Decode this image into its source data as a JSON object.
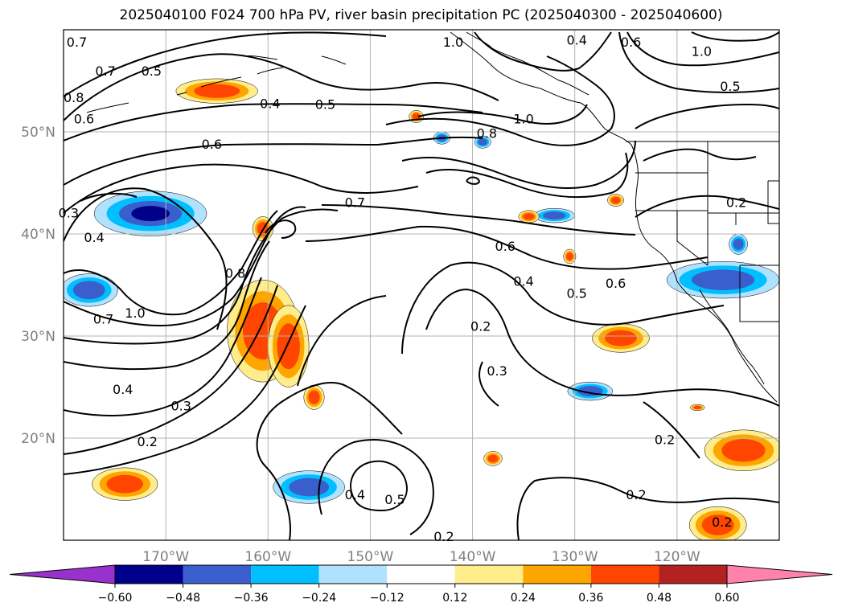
{
  "title": "2025040100 F024 700 hPa PV, river basin precipitation PC (2025040300 - 2025040600)",
  "map": {
    "lon_range": [
      -180,
      -110
    ],
    "lat_range": [
      10,
      60
    ],
    "lat_labels": [
      "50°N",
      "40°N",
      "30°N",
      "20°N"
    ],
    "lat_values": [
      50,
      40,
      30,
      20
    ],
    "lon_labels": [
      "170°W",
      "160°W",
      "150°W",
      "140°W",
      "130°W",
      "120°W"
    ],
    "lon_values": [
      -170,
      -160,
      -150,
      -140,
      -130,
      -120
    ],
    "contour_labels": [
      {
        "text": "0.7",
        "lon": -178.7,
        "lat": 58.8
      },
      {
        "text": "0.7",
        "lon": -175.9,
        "lat": 56.0
      },
      {
        "text": "0.5",
        "lon": -171.4,
        "lat": 56.0
      },
      {
        "text": "0.8",
        "lon": -179.0,
        "lat": 53.4
      },
      {
        "text": "0.6",
        "lon": -178.0,
        "lat": 51.3
      },
      {
        "text": "0.4",
        "lon": -159.8,
        "lat": 52.8
      },
      {
        "text": "0.5",
        "lon": -154.4,
        "lat": 52.7
      },
      {
        "text": "0.6",
        "lon": -165.5,
        "lat": 48.8
      },
      {
        "text": "1.0",
        "lon": -141.9,
        "lat": 58.8
      },
      {
        "text": "0.4",
        "lon": -129.8,
        "lat": 59.0
      },
      {
        "text": "0.6",
        "lon": -124.5,
        "lat": 58.8
      },
      {
        "text": "1.0",
        "lon": -117.6,
        "lat": 57.9
      },
      {
        "text": "0.5",
        "lon": -114.8,
        "lat": 54.5
      },
      {
        "text": "0.8",
        "lon": -138.6,
        "lat": 49.9
      },
      {
        "text": "1.0",
        "lon": -135.0,
        "lat": 51.3
      },
      {
        "text": "0.7",
        "lon": -151.5,
        "lat": 43.1
      },
      {
        "text": "0.3",
        "lon": -179.5,
        "lat": 42.1
      },
      {
        "text": "0.2",
        "lon": -114.2,
        "lat": 43.1
      },
      {
        "text": "0.4",
        "lon": -177.0,
        "lat": 39.7
      },
      {
        "text": "0.6",
        "lon": -136.8,
        "lat": 38.8
      },
      {
        "text": "0.8",
        "lon": -163.2,
        "lat": 36.2
      },
      {
        "text": "0.4",
        "lon": -135.0,
        "lat": 35.4
      },
      {
        "text": "0.5",
        "lon": -129.8,
        "lat": 34.2
      },
      {
        "text": "0.6",
        "lon": -126.0,
        "lat": 35.2
      },
      {
        "text": "0.2",
        "lon": -139.2,
        "lat": 31.0
      },
      {
        "text": "1.0",
        "lon": -173.0,
        "lat": 32.3
      },
      {
        "text": "0.7",
        "lon": -176.1,
        "lat": 31.7
      },
      {
        "text": "0.3",
        "lon": -137.6,
        "lat": 26.6
      },
      {
        "text": "0.4",
        "lon": -174.2,
        "lat": 24.8
      },
      {
        "text": "0.3",
        "lon": -168.5,
        "lat": 23.2
      },
      {
        "text": "0.2",
        "lon": -171.8,
        "lat": 19.7
      },
      {
        "text": "0.2",
        "lon": -121.2,
        "lat": 19.9
      },
      {
        "text": "0.4",
        "lon": -151.5,
        "lat": 14.5
      },
      {
        "text": "0.5",
        "lon": -147.6,
        "lat": 14.0
      },
      {
        "text": "0.2",
        "lon": -124.0,
        "lat": 14.5
      },
      {
        "text": "0.2",
        "lon": -142.8,
        "lat": 10.4
      },
      {
        "text": "0.2",
        "lon": -115.6,
        "lat": 11.8
      }
    ]
  },
  "colorbar": {
    "ticks": [
      "−0.60",
      "−0.48",
      "−0.36",
      "−0.24",
      "−0.12",
      "0.12",
      "0.24",
      "0.36",
      "0.48",
      "0.60"
    ],
    "tick_values": [
      -0.6,
      -0.48,
      -0.36,
      -0.24,
      -0.12,
      0.12,
      0.24,
      0.36,
      0.48,
      0.6
    ],
    "colors": [
      "#9932cc",
      "#00008b",
      "#3a5fcd",
      "#00bfff",
      "#b0e2ff",
      "#ffffff",
      "#ffec8b",
      "#ffa500",
      "#ff4500",
      "#b22222",
      "#ff82ab"
    ]
  },
  "precip_blobs": [
    {
      "lon": -171.5,
      "lat": 42.0,
      "rx": 5.5,
      "ry": 2.2,
      "value": -0.48
    },
    {
      "lon": -177.5,
      "lat": 34.5,
      "rx": 2.8,
      "ry": 1.6,
      "value": -0.42
    },
    {
      "lon": -165.0,
      "lat": 54.0,
      "rx": 4.0,
      "ry": 1.2,
      "value": 0.4
    },
    {
      "lon": -160.5,
      "lat": 30.5,
      "rx": 3.5,
      "ry": 5.0,
      "value": 0.45
    },
    {
      "lon": -155.5,
      "lat": 24.0,
      "rx": 1.0,
      "ry": 1.2,
      "value": 0.38
    },
    {
      "lon": -158.0,
      "lat": 29.0,
      "rx": 2.0,
      "ry": 4.0,
      "value": 0.4
    },
    {
      "lon": -160.5,
      "lat": 40.5,
      "rx": 1.0,
      "ry": 1.2,
      "value": 0.38
    },
    {
      "lon": -174.0,
      "lat": 15.5,
      "rx": 3.2,
      "ry": 1.6,
      "value": 0.4
    },
    {
      "lon": -156.0,
      "lat": 15.2,
      "rx": 3.5,
      "ry": 1.6,
      "value": -0.46
    },
    {
      "lon": -125.5,
      "lat": 29.8,
      "rx": 2.8,
      "ry": 1.4,
      "value": 0.45
    },
    {
      "lon": -128.5,
      "lat": 24.6,
      "rx": 2.2,
      "ry": 0.9,
      "value": -0.4
    },
    {
      "lon": -113.5,
      "lat": 18.8,
      "rx": 3.8,
      "ry": 2.0,
      "value": 0.44
    },
    {
      "lon": -116.0,
      "lat": 11.5,
      "rx": 2.8,
      "ry": 1.8,
      "value": 0.45
    },
    {
      "lon": -115.5,
      "lat": 35.5,
      "rx": 5.5,
      "ry": 1.8,
      "value": -0.4
    },
    {
      "lon": -114.0,
      "lat": 39.0,
      "rx": 0.9,
      "ry": 1.0,
      "value": -0.38
    },
    {
      "lon": -126.0,
      "lat": 43.3,
      "rx": 0.8,
      "ry": 0.6,
      "value": 0.38
    },
    {
      "lon": -132.0,
      "lat": 41.8,
      "rx": 2.0,
      "ry": 0.7,
      "value": -0.36
    },
    {
      "lon": -134.5,
      "lat": 41.7,
      "rx": 1.0,
      "ry": 0.6,
      "value": 0.38
    },
    {
      "lon": -130.5,
      "lat": 37.8,
      "rx": 0.6,
      "ry": 0.7,
      "value": 0.38
    },
    {
      "lon": -143.0,
      "lat": 49.4,
      "rx": 0.8,
      "ry": 0.6,
      "value": -0.36
    },
    {
      "lon": -139.0,
      "lat": 49.0,
      "rx": 0.8,
      "ry": 0.6,
      "value": -0.36
    },
    {
      "lon": -145.5,
      "lat": 51.5,
      "rx": 0.7,
      "ry": 0.6,
      "value": 0.38
    },
    {
      "lon": -149.0,
      "lat": 18.0,
      "rx": 0.0,
      "ry": 0.0,
      "value": 0.0
    },
    {
      "lon": -138.0,
      "lat": 18.0,
      "rx": 0.9,
      "ry": 0.7,
      "value": 0.36
    },
    {
      "lon": -118.0,
      "lat": 23.0,
      "rx": 0.7,
      "ry": 0.3,
      "value": 0.36
    }
  ]
}
